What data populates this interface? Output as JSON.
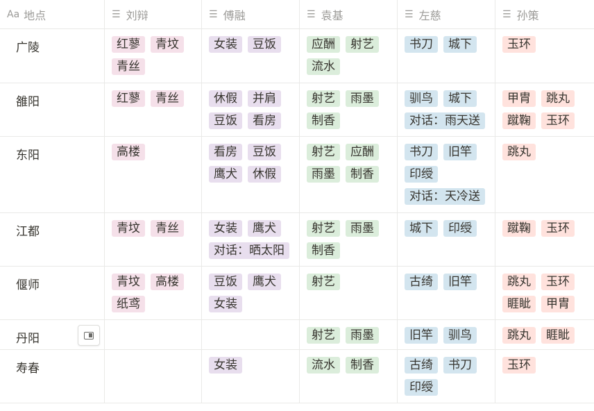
{
  "headers": [
    {
      "icon": "text-icon",
      "glyph": "Aa",
      "label": "地点"
    },
    {
      "icon": "list-icon",
      "glyph": "☰",
      "label": "刘辩"
    },
    {
      "icon": "list-icon",
      "glyph": "☰",
      "label": "傅融"
    },
    {
      "icon": "list-icon",
      "glyph": "☰",
      "label": "袁基"
    },
    {
      "icon": "list-icon",
      "glyph": "☰",
      "label": "左慈"
    },
    {
      "icon": "list-icon",
      "glyph": "☰",
      "label": "孙策"
    }
  ],
  "colors": {
    "pink": "#f5e0e9",
    "purple": "#e8deee",
    "green": "#dbeddb",
    "blue": "#d3e5ef",
    "red": "#ffe2dd"
  },
  "rows": [
    {
      "name": "广陵",
      "cells": [
        [
          "红蓼",
          "青坟",
          "青丝"
        ],
        [
          "女装",
          "豆饭"
        ],
        [
          "应酬",
          "射艺",
          "流水"
        ],
        [
          "书刀",
          "城下"
        ],
        [
          "玉环"
        ]
      ]
    },
    {
      "name": "雒阳",
      "cells": [
        [
          "红蓼",
          "青丝"
        ],
        [
          "休假",
          "并肩",
          "豆饭",
          "看房"
        ],
        [
          "射艺",
          "雨墨",
          "制香"
        ],
        [
          "驯鸟",
          "城下",
          "对话：雨天送"
        ],
        [
          "甲胄",
          "跳丸",
          "蹴鞠",
          "玉环"
        ]
      ]
    },
    {
      "name": "东阳",
      "cells": [
        [
          "高楼"
        ],
        [
          "看房",
          "豆饭",
          "鹰犬",
          "休假"
        ],
        [
          "射艺",
          "应酬",
          "雨墨",
          "制香"
        ],
        [
          "书刀",
          "旧竿",
          "印绶",
          "对话：天冷送"
        ],
        [
          "跳丸"
        ]
      ]
    },
    {
      "name": "江都",
      "cells": [
        [
          "青坟",
          "青丝"
        ],
        [
          "女装",
          "鹰犬",
          "对话：晒太阳"
        ],
        [
          "射艺",
          "雨墨",
          "制香"
        ],
        [
          "城下",
          "印绶"
        ],
        [
          "蹴鞠",
          "玉环"
        ]
      ]
    },
    {
      "name": "偃师",
      "cells": [
        [
          "青坟",
          "高楼",
          "纸鸢"
        ],
        [
          "豆饭",
          "鹰犬",
          "女装"
        ],
        [
          "射艺"
        ],
        [
          "古绮",
          "旧竿"
        ],
        [
          "跳丸",
          "玉环",
          "睚眦",
          "甲胄"
        ]
      ]
    },
    {
      "name": "丹阳",
      "cells": [
        [],
        [],
        [
          "射艺",
          "雨墨"
        ],
        [
          "旧竿",
          "驯鸟"
        ],
        [
          "跳丸",
          "睚眦"
        ]
      ]
    },
    {
      "name": "寿春",
      "cells": [
        [],
        [
          "女装"
        ],
        [
          "流水",
          "制香"
        ],
        [
          "古绮",
          "书刀",
          "印绶"
        ],
        [
          "玉环"
        ]
      ]
    }
  ]
}
